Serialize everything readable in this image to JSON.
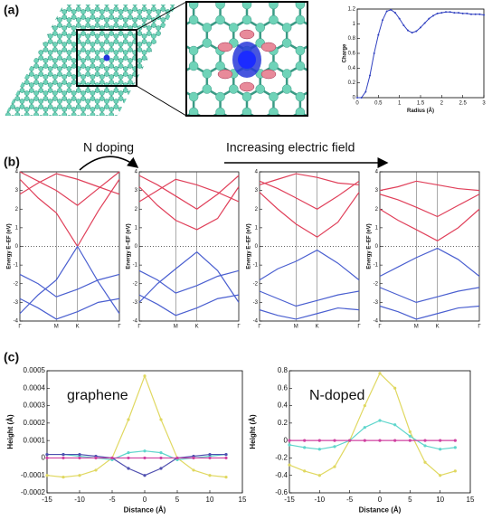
{
  "panel_labels": [
    "(a)",
    "(b)",
    "(c)"
  ],
  "annotations": [
    "N doping",
    "Increasing electric field"
  ],
  "chart_data": [
    {
      "type": "line",
      "xlabel": "Radius (Å)",
      "ylabel": "Charge",
      "markers": true,
      "x": [
        0,
        0.1,
        0.2,
        0.3,
        0.4,
        0.5,
        0.6,
        0.7,
        0.8,
        0.9,
        1,
        1.1,
        1.2,
        1.3,
        1.4,
        1.5,
        1.6,
        1.7,
        1.8,
        1.9,
        2,
        2.1,
        2.2,
        2.3,
        2.4,
        2.5,
        2.6,
        2.7,
        2.8,
        2.9,
        3
      ],
      "series": [
        {
          "color": "#3040c0",
          "values": [
            0,
            0,
            0.08,
            0.3,
            0.6,
            0.85,
            1.05,
            1.17,
            1.19,
            1.15,
            1.07,
            0.98,
            0.91,
            0.88,
            0.9,
            0.95,
            1.01,
            1.07,
            1.11,
            1.14,
            1.15,
            1.16,
            1.16,
            1.15,
            1.15,
            1.14,
            1.14,
            1.13,
            1.13,
            1.13,
            1.12
          ]
        }
      ],
      "xlim": [
        0,
        3
      ],
      "xticks": [
        0,
        0.5,
        1,
        1.5,
        2,
        2.5,
        3
      ],
      "ylim": [
        0,
        1.2
      ],
      "yticks": [
        0,
        0.2,
        0.4,
        0.6,
        0.8,
        1,
        1.2
      ]
    },
    {
      "type": "line",
      "ylabel": "Energy E−EF (eV)",
      "grid": true,
      "hline": 0,
      "x": [
        0,
        0.5,
        1,
        1.58,
        2.15,
        2.73
      ],
      "xlim": [
        0,
        2.73
      ],
      "xticks": [
        {
          "value": 0,
          "label": "Γ"
        },
        {
          "value": 1,
          "label": "M"
        },
        {
          "value": 1.58,
          "label": "K"
        },
        {
          "value": 2.73,
          "label": "Γ"
        }
      ],
      "ylim": [
        -4,
        4
      ],
      "yticks": [
        -4,
        -3,
        -2,
        -1,
        0,
        1,
        2,
        3,
        4
      ],
      "series": [
        {
          "color": "#e0405a",
          "values": [
            3.6,
            2.6,
            1.8,
            0,
            1.9,
            3.6
          ]
        },
        {
          "color": "#e0405a",
          "values": [
            4,
            3.5,
            3,
            2.2,
            3.1,
            4
          ]
        },
        {
          "color": "#e0405a",
          "values": [
            2.8,
            3.4,
            3.9,
            3.6,
            3.2,
            2.8
          ]
        },
        {
          "color": "#4a5fd0",
          "values": [
            -3.6,
            -2.6,
            -1.8,
            0,
            -1.9,
            -3.6
          ]
        },
        {
          "color": "#4a5fd0",
          "values": [
            -1.5,
            -2,
            -2.7,
            -2.3,
            -1.8,
            -1.5
          ]
        },
        {
          "color": "#4a5fd0",
          "values": [
            -2.8,
            -3.3,
            -3.9,
            -3.5,
            -3,
            -2.8
          ]
        }
      ]
    },
    {
      "type": "line",
      "ylabel": "Energy E−EF (eV)",
      "grid": true,
      "hline": 0,
      "x": [
        0,
        0.5,
        1,
        1.58,
        2.15,
        2.73
      ],
      "xlim": [
        0,
        2.73
      ],
      "xticks": [
        {
          "value": 0,
          "label": "Γ"
        },
        {
          "value": 1,
          "label": "M"
        },
        {
          "value": 1.58,
          "label": "K"
        },
        {
          "value": 2.73,
          "label": "Γ"
        }
      ],
      "ylim": [
        -4,
        4
      ],
      "yticks": [
        -4,
        -3,
        -2,
        -1,
        0,
        1,
        2,
        3,
        4
      ],
      "series": [
        {
          "color": "#e0405a",
          "values": [
            3.2,
            2.2,
            1.4,
            0.9,
            1.5,
            3.2
          ]
        },
        {
          "color": "#e0405a",
          "values": [
            3.8,
            3.3,
            2.7,
            2,
            2.8,
            3.8
          ]
        },
        {
          "color": "#e0405a",
          "values": [
            2.4,
            3,
            3.6,
            3.3,
            2.9,
            2.4
          ]
        },
        {
          "color": "#4a5fd0",
          "values": [
            -3,
            -2,
            -1.2,
            -0.3,
            -1.3,
            -3
          ]
        },
        {
          "color": "#4a5fd0",
          "values": [
            -1.3,
            -1.8,
            -2.5,
            -2.1,
            -1.6,
            -1.3
          ]
        },
        {
          "color": "#4a5fd0",
          "values": [
            -2.6,
            -3.1,
            -3.7,
            -3.3,
            -2.8,
            -2.6
          ]
        }
      ]
    },
    {
      "type": "line",
      "ylabel": "Energy E−EF (eV)",
      "grid": true,
      "hline": 0,
      "x": [
        0,
        0.5,
        1,
        1.58,
        2.15,
        2.73
      ],
      "xlim": [
        0,
        2.73
      ],
      "xticks": [
        {
          "value": 0,
          "label": "Γ"
        },
        {
          "value": 1,
          "label": "M"
        },
        {
          "value": 1.58,
          "label": "K"
        },
        {
          "value": 2.73,
          "label": "Γ"
        }
      ],
      "ylim": [
        -4,
        4
      ],
      "yticks": [
        -4,
        -3,
        -2,
        -1,
        0,
        1,
        2,
        3,
        4
      ],
      "series": [
        {
          "color": "#e0405a",
          "values": [
            2.9,
            2,
            1.2,
            0.5,
            1.3,
            2.9
          ]
        },
        {
          "color": "#e0405a",
          "values": [
            3.5,
            3.1,
            2.6,
            2,
            2.7,
            3.5
          ]
        },
        {
          "color": "#e0405a",
          "values": [
            3.3,
            3.6,
            3.9,
            3.7,
            3.4,
            3.3
          ]
        },
        {
          "color": "#4a5fd0",
          "values": [
            -1.8,
            -1.2,
            -0.8,
            -0.2,
            -0.9,
            -1.8
          ]
        },
        {
          "color": "#4a5fd0",
          "values": [
            -2.4,
            -2.8,
            -3.2,
            -2.9,
            -2.6,
            -2.4
          ]
        },
        {
          "color": "#4a5fd0",
          "values": [
            -3.4,
            -3.7,
            -3.9,
            -3.6,
            -3.3,
            -3.4
          ]
        }
      ]
    },
    {
      "type": "line",
      "ylabel": "Energy E−EF (eV)",
      "grid": true,
      "hline": 0,
      "x": [
        0,
        0.5,
        1,
        1.58,
        2.15,
        2.73
      ],
      "xlim": [
        0,
        2.73
      ],
      "xticks": [
        {
          "value": 0,
          "label": "Γ"
        },
        {
          "value": 1,
          "label": "M"
        },
        {
          "value": 1.58,
          "label": "K"
        },
        {
          "value": 2.73,
          "label": "Γ"
        }
      ],
      "ylim": [
        -4,
        4
      ],
      "yticks": [
        -4,
        -3,
        -2,
        -1,
        0,
        1,
        2,
        3,
        4
      ],
      "series": [
        {
          "color": "#e0405a",
          "values": [
            2,
            1.4,
            0.9,
            0.3,
            1,
            2
          ]
        },
        {
          "color": "#e0405a",
          "values": [
            2.8,
            2.5,
            2.1,
            1.6,
            2.2,
            2.8
          ]
        },
        {
          "color": "#e0405a",
          "values": [
            3,
            3.2,
            3.5,
            3.3,
            3.1,
            3
          ]
        },
        {
          "color": "#4a5fd0",
          "values": [
            -1.6,
            -1.1,
            -0.6,
            -0.1,
            -0.7,
            -1.6
          ]
        },
        {
          "color": "#4a5fd0",
          "values": [
            -2.2,
            -2.6,
            -3,
            -2.7,
            -2.4,
            -2.2
          ]
        },
        {
          "color": "#4a5fd0",
          "values": [
            -3.2,
            -3.5,
            -3.9,
            -3.6,
            -3.3,
            -3.2
          ]
        }
      ]
    },
    {
      "type": "line",
      "annotation": "graphene",
      "xlabel": "Distance (Å)",
      "ylabel": "Height (Å)",
      "markers": true,
      "x": [
        -15,
        -12.5,
        -10,
        -7.5,
        -5,
        -2.5,
        0,
        2.5,
        5,
        7.5,
        10,
        12.5
      ],
      "xlim": [
        -15,
        15
      ],
      "xticks": [
        -15,
        -10,
        -5,
        0,
        5,
        10,
        15
      ],
      "ylim": [
        -0.0002,
        0.0005
      ],
      "yticks": [
        -0.0002,
        -0.0001,
        0,
        0.0001,
        0.0002,
        0.0003,
        0.0004,
        0.0005
      ],
      "series": [
        {
          "color": "#e0d860",
          "values": [
            -0.0001,
            -0.00011,
            -0.0001,
            -7e-05,
            0,
            0.00022,
            0.00047,
            0.00022,
            0,
            -7e-05,
            -0.0001,
            -0.00011
          ]
        },
        {
          "color": "#5fd6cc",
          "values": [
            2e-05,
            2e-05,
            1e-05,
            0,
            -1e-05,
            3e-05,
            4e-05,
            3e-05,
            -1e-05,
            0,
            1e-05,
            2e-05
          ]
        },
        {
          "color": "#5050b0",
          "values": [
            2e-05,
            2e-05,
            2e-05,
            1e-05,
            0,
            -6e-05,
            -0.0001,
            -6e-05,
            0,
            1e-05,
            2e-05,
            2e-05
          ]
        },
        {
          "color": "#d040a0",
          "values": [
            0,
            0,
            0,
            0,
            0,
            0,
            0,
            0,
            0,
            0,
            0,
            0
          ]
        }
      ]
    },
    {
      "type": "line",
      "annotation": "N-doped",
      "xlabel": "Distance (Å)",
      "ylabel": "Height (Å)",
      "markers": true,
      "x": [
        -15,
        -12.5,
        -10,
        -7.5,
        -5,
        -2.5,
        0,
        2.5,
        5,
        7.5,
        10,
        12.5
      ],
      "xlim": [
        -15,
        15
      ],
      "xticks": [
        -15,
        -10,
        -5,
        0,
        5,
        10,
        15
      ],
      "ylim": [
        -0.6,
        0.8
      ],
      "yticks": [
        -0.6,
        -0.4,
        -0.2,
        0,
        0.2,
        0.4,
        0.6,
        0.8
      ],
      "series": [
        {
          "color": "#e0d860",
          "values": [
            -0.28,
            -0.35,
            -0.4,
            -0.3,
            0,
            0.4,
            0.77,
            0.6,
            0.1,
            -0.25,
            -0.4,
            -0.35
          ]
        },
        {
          "color": "#5fd6cc",
          "values": [
            -0.05,
            -0.08,
            -0.1,
            -0.07,
            0,
            0.15,
            0.23,
            0.18,
            0.05,
            -0.06,
            -0.1,
            -0.08
          ]
        },
        {
          "color": "#d040a0",
          "values": [
            0,
            0,
            0,
            0,
            0,
            0,
            0,
            0,
            0,
            0,
            0,
            0
          ]
        }
      ]
    }
  ]
}
